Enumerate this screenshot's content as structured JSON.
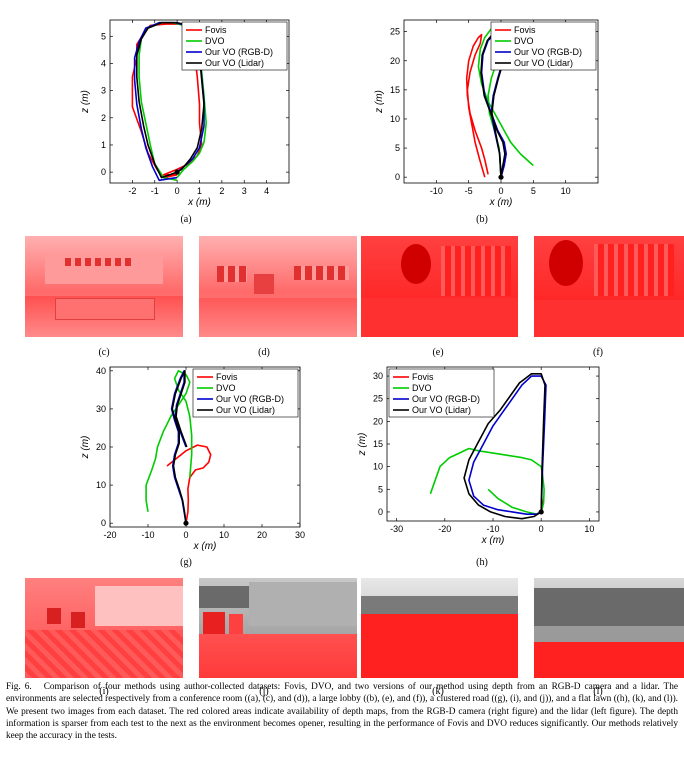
{
  "legend": {
    "fovis": {
      "label": "Fovis",
      "color": "#ff0000"
    },
    "dvo": {
      "label": "DVO",
      "color": "#00cc00"
    },
    "rgbd": {
      "label": "Our VO (RGB-D)",
      "color": "#0000cc"
    },
    "lidar": {
      "label": "Our VO (Lidar)",
      "color": "#000000"
    }
  },
  "panel_labels": {
    "a": "(a)",
    "b": "(b)",
    "c": "(c)",
    "d": "(d)",
    "e": "(e)",
    "f": "(f)",
    "g": "(g)",
    "h": "(h)",
    "i": "(i)",
    "j": "(j)",
    "k": "(k)",
    "l": "(l)"
  },
  "photos": {
    "c": {
      "icon": "conference-room-photo",
      "tint": "#ff6f6f"
    },
    "d": {
      "icon": "conference-room-photo",
      "tint": "#ff6f6f"
    },
    "e": {
      "icon": "lobby-photo",
      "tint": "#ff2a2a"
    },
    "f": {
      "icon": "lobby-photo",
      "tint": "#ff2a2a"
    },
    "i": {
      "icon": "road-photo",
      "tint": "#ff4a4a"
    },
    "j": {
      "icon": "road-photo",
      "tint": "#ff4a4a"
    },
    "k": {
      "icon": "lawn-photo",
      "tint": "#ff2020"
    },
    "l": {
      "icon": "lawn-photo",
      "tint": "#ff2020"
    }
  },
  "caption": {
    "fig_label": "Fig. 6.",
    "text": "Comparison of four methods using author-collected datasets: Fovis, DVO, and two versions of our method using depth from an RGB-D camera and a lidar. The environments are selected respectively from a conference room ((a), (c), and (d)), a large lobby ((b), (e), and (f)), a clustered road ((g), (i), and (j)), and a flat lawn ((h), (k), and (l)). We present two images from each dataset. The red colored areas indicate availability of depth maps, from the RGB-D camera (right figure) and the lidar (left figure). The depth information is sparser from each test to the next as the environment becomes opener, resulting in the performance of Fovis and DVO reduces significantly. Our methods relatively keep the accuracy in the tests."
  },
  "chart_data": [
    {
      "id": "a",
      "type": "line",
      "xlabel": "x (m)",
      "ylabel": "z (m)",
      "xlim": [
        -3,
        5
      ],
      "ylim": [
        -0.4,
        5.6
      ],
      "xticks": [
        -2,
        -1,
        0,
        1,
        2,
        3,
        4
      ],
      "yticks": [
        0,
        1,
        2,
        3,
        4,
        5
      ],
      "legend_position": "top-right",
      "series": [
        {
          "key": "fovis",
          "x": [
            0,
            -0.6,
            -0.9,
            -1.3,
            -1.6,
            -2.0,
            -2.0,
            -1.8,
            -1.8,
            -1.5,
            -1.2,
            -0.5,
            0.3,
            0.5,
            0.6,
            0.8,
            0.9,
            1.0,
            1.0,
            1.1,
            0.9,
            0.5,
            0,
            -0.6,
            0
          ],
          "y": [
            -0.1,
            -0.2,
            0.1,
            0.7,
            1.5,
            2.4,
            3.5,
            4.2,
            4.7,
            5.1,
            5.4,
            5.45,
            5.45,
            5.3,
            5.0,
            4.2,
            3.5,
            2.5,
            1.8,
            1.0,
            0.6,
            0.3,
            0.1,
            -0.1,
            -0.1
          ]
        },
        {
          "key": "dvo",
          "x": [
            0,
            -0.6,
            -1.0,
            -1.2,
            -1.4,
            -1.6,
            -1.7,
            -1.7,
            -1.6,
            -1.3,
            -0.8,
            -0.2,
            0.3,
            0.6,
            0.9,
            1.1,
            1.2,
            1.3,
            1.2,
            1.0,
            0.7,
            0.3,
            0
          ],
          "y": [
            -0.3,
            -0.2,
            0.3,
            1.0,
            1.8,
            2.6,
            3.5,
            4.3,
            4.9,
            5.3,
            5.5,
            5.5,
            5.4,
            5.1,
            4.5,
            3.7,
            2.8,
            1.8,
            1.1,
            0.7,
            0.4,
            0.1,
            -0.2
          ]
        },
        {
          "key": "rgbd",
          "x": [
            0,
            -0.8,
            -1.1,
            -1.4,
            -1.6,
            -1.8,
            -1.9,
            -1.9,
            -1.7,
            -1.4,
            -0.8,
            -0.1,
            0.4,
            0.8,
            1.0,
            1.1,
            1.2,
            1.2,
            1.0,
            0.7,
            0.3,
            0
          ],
          "y": [
            -0.2,
            -0.3,
            0.2,
            0.9,
            1.6,
            2.5,
            3.4,
            4.2,
            4.8,
            5.3,
            5.5,
            5.5,
            5.4,
            5.0,
            4.3,
            3.5,
            2.6,
            1.7,
            0.9,
            0.5,
            0.2,
            0
          ]
        },
        {
          "key": "lidar",
          "x": [
            0,
            -0.7,
            -1.0,
            -1.3,
            -1.5,
            -1.7,
            -1.8,
            -1.8,
            -1.6,
            -1.3,
            -0.7,
            0,
            0.5,
            0.8,
            1.0,
            1.1,
            1.2,
            1.1,
            0.9,
            0.6,
            0.2,
            0
          ],
          "y": [
            0,
            -0.2,
            0.3,
            1.0,
            1.7,
            2.6,
            3.5,
            4.3,
            4.9,
            5.3,
            5.5,
            5.5,
            5.4,
            5.0,
            4.3,
            3.4,
            2.5,
            1.6,
            0.9,
            0.5,
            0.1,
            0
          ]
        }
      ]
    },
    {
      "id": "b",
      "type": "line",
      "xlabel": "x (m)",
      "ylabel": "z (m)",
      "xlim": [
        -15,
        15
      ],
      "ylim": [
        -1,
        27
      ],
      "xticks": [
        -10,
        -5,
        0,
        5,
        10
      ],
      "yticks": [
        0,
        5,
        10,
        15,
        20,
        25
      ],
      "legend_position": "top-right",
      "series": [
        {
          "key": "fovis",
          "x": [
            -2,
            -2.5,
            -3,
            -4,
            -4.8,
            -5.2,
            -5.3,
            -5,
            -4.3,
            -3.5,
            -3,
            -3.2,
            -4,
            -4.8,
            -5.2,
            -5,
            -4.5,
            -4,
            -3.3,
            -2.5
          ],
          "y": [
            0.5,
            3,
            5,
            8,
            11,
            14,
            17,
            20,
            22.5,
            24,
            24.5,
            23,
            21,
            18,
            15,
            12,
            9,
            6,
            3,
            0
          ]
        },
        {
          "key": "dvo",
          "x": [
            5,
            3,
            1.5,
            0.5,
            -0.5,
            -2,
            -3,
            -3.5,
            -3.2,
            -2.5,
            -1.5,
            -0.5,
            -0.2,
            -0.6,
            -1.5,
            -2,
            -1.8,
            -1,
            -0.3,
            0
          ],
          "y": [
            2,
            4,
            6,
            8,
            10,
            13,
            16,
            19,
            22,
            24,
            25.5,
            25.5,
            23,
            20,
            17,
            14,
            11,
            8,
            5,
            0
          ]
        },
        {
          "key": "rgbd",
          "x": [
            0,
            0.5,
            0.8,
            0.5,
            -0.5,
            -1.5,
            -2.5,
            -3,
            -2.8,
            -2,
            -1,
            0,
            0.5,
            0.3,
            -0.5,
            -1.2,
            -1.5,
            -1,
            -0.2,
            0
          ],
          "y": [
            0,
            2,
            4,
            6,
            8,
            11,
            14,
            18,
            21,
            23.5,
            24.5,
            24.5,
            23,
            20,
            17,
            14,
            11,
            8,
            4,
            0
          ]
        },
        {
          "key": "lidar",
          "x": [
            0,
            0.3,
            0.6,
            0.3,
            -0.6,
            -1.6,
            -2.6,
            -3.1,
            -2.9,
            -2.1,
            -1.1,
            0.1,
            0.6,
            0.4,
            -0.4,
            -1.1,
            -1.4,
            -0.9,
            -0.2,
            0
          ],
          "y": [
            0,
            2,
            4,
            6,
            8,
            11,
            14,
            18,
            21,
            23.5,
            24.8,
            24.8,
            23,
            20,
            17,
            14,
            11,
            8,
            4,
            0
          ]
        }
      ]
    },
    {
      "id": "g",
      "type": "line",
      "xlabel": "x (m)",
      "ylabel": "z (m)",
      "xlim": [
        -20,
        30
      ],
      "ylim": [
        -1,
        41
      ],
      "xticks": [
        -20,
        -10,
        0,
        10,
        20,
        30
      ],
      "yticks": [
        0,
        10,
        20,
        30,
        40
      ],
      "legend_position": "top-right",
      "series": [
        {
          "key": "fovis",
          "x": [
            0,
            0.5,
            0.6,
            0.5,
            1,
            2.5,
            4.5,
            6,
            6.5,
            5.5,
            3,
            0,
            -2.5,
            -5
          ],
          "y": [
            0,
            3,
            6,
            9,
            12,
            14,
            14.5,
            16,
            18,
            20,
            20.5,
            19,
            17,
            15
          ]
        },
        {
          "key": "dvo",
          "x": [
            -10,
            -10.5,
            -10.5,
            -9,
            -8,
            -7.5,
            -6,
            -4,
            -2,
            0,
            1,
            0,
            -2,
            -3,
            -2,
            0,
            1,
            1.5,
            1.5,
            1
          ],
          "y": [
            3,
            6,
            10,
            14,
            17,
            20,
            24,
            28,
            31,
            34,
            37,
            39,
            40,
            38,
            35,
            32,
            28,
            23,
            18,
            12
          ]
        },
        {
          "key": "rgbd",
          "x": [
            0,
            -0.5,
            -1,
            -2,
            -3,
            -3.5,
            -3,
            -2,
            -2,
            -3,
            -3.8,
            -3,
            -1.5,
            -0.5,
            -0.5,
            -1.5,
            -2.5,
            -2.8,
            -1.5,
            0
          ],
          "y": [
            0,
            3,
            6,
            9,
            12,
            15,
            18,
            21,
            24,
            27,
            30,
            34,
            38,
            40,
            37,
            34,
            31,
            28,
            24,
            20
          ]
        },
        {
          "key": "lidar",
          "x": [
            0,
            -0.4,
            -0.9,
            -1.8,
            -2.8,
            -3.3,
            -2.8,
            -1.8,
            -1.8,
            -2.8,
            -3.6,
            -2.8,
            -1.3,
            -0.3,
            -0.3,
            -1.3,
            -2.3,
            -2.6,
            -1.3,
            0.2
          ],
          "y": [
            0,
            3,
            6,
            9,
            12,
            15,
            18,
            21,
            24,
            27,
            30,
            34,
            38,
            40,
            37,
            34,
            31,
            28,
            24,
            20
          ]
        }
      ]
    },
    {
      "id": "h",
      "type": "line",
      "xlabel": "x (m)",
      "ylabel": "z (m)",
      "xlim": [
        -32,
        12
      ],
      "ylim": [
        -2,
        32
      ],
      "xticks": [
        -30,
        -20,
        -10,
        0,
        10
      ],
      "yticks": [
        0,
        5,
        10,
        15,
        20,
        25,
        30
      ],
      "legend_position": "top-left",
      "series": [
        {
          "key": "fovis",
          "x": [
            0,
            0.2,
            0.3,
            0.2,
            0.1,
            0
          ],
          "y": [
            0,
            0.5,
            1.5,
            2.5,
            3,
            0
          ]
        },
        {
          "key": "dvo",
          "x": [
            -23,
            -22,
            -21,
            -19,
            -17,
            -15,
            -13,
            -10,
            -7,
            -4,
            -2,
            0,
            0.3,
            0.6,
            0.5,
            0,
            -1,
            -3,
            -6,
            -9,
            -11
          ],
          "y": [
            4,
            7,
            10,
            12,
            13,
            14,
            13.5,
            13,
            12.5,
            12,
            11.5,
            10,
            8,
            5,
            2,
            0,
            -0.5,
            0,
            1,
            3,
            5
          ]
        },
        {
          "key": "rgbd",
          "x": [
            0,
            -1,
            -3,
            -6,
            -9,
            -12,
            -14,
            -15,
            -14,
            -12,
            -10,
            -8,
            -6,
            -4,
            -2,
            0,
            1,
            0.7,
            0.3,
            0
          ],
          "y": [
            0,
            -0.5,
            -0.5,
            0,
            0.5,
            1.5,
            3.5,
            7,
            11,
            15,
            19,
            22,
            25,
            28,
            30,
            30,
            28,
            20,
            10,
            0
          ]
        },
        {
          "key": "lidar",
          "x": [
            0,
            -1.5,
            -4,
            -7.5,
            -10.5,
            -13,
            -15,
            -16,
            -15,
            -13,
            -11,
            -8.5,
            -6.5,
            -4.5,
            -2,
            0,
            0.8,
            0.5,
            0.2,
            0
          ],
          "y": [
            0,
            -1,
            -1.5,
            -1,
            0,
            1.5,
            4,
            7.5,
            11.5,
            15.5,
            19.5,
            22.5,
            25.5,
            28.5,
            30.5,
            30.5,
            28,
            20,
            10,
            0
          ]
        }
      ]
    }
  ]
}
